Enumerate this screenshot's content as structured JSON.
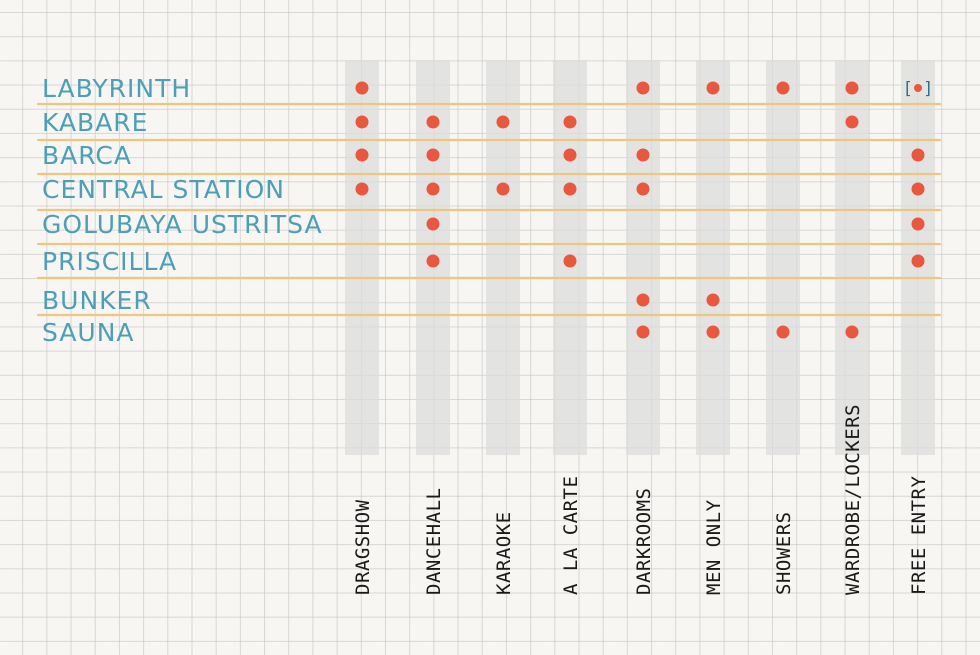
{
  "chart_data": {
    "type": "table",
    "rows": [
      "Labyrinth",
      "Kabare",
      "Barca",
      "Central Station",
      "Golubaya Ustritsa",
      "Priscilla",
      "Bunker",
      "Sauna"
    ],
    "columns": [
      "Dragshow",
      "Dancehall",
      "Karaoke",
      "A la carte",
      "Darkrooms",
      "Men only",
      "Showers",
      "Wardrobe/Lockers",
      "Free entry"
    ],
    "matrix": [
      [
        1,
        0,
        0,
        0,
        1,
        1,
        1,
        1,
        2
      ],
      [
        1,
        1,
        1,
        1,
        0,
        0,
        0,
        1,
        0
      ],
      [
        1,
        1,
        0,
        1,
        1,
        0,
        0,
        0,
        1
      ],
      [
        1,
        1,
        1,
        1,
        1,
        0,
        0,
        0,
        1
      ],
      [
        0,
        1,
        0,
        0,
        0,
        0,
        0,
        0,
        1
      ],
      [
        0,
        1,
        0,
        1,
        0,
        0,
        0,
        0,
        1
      ],
      [
        0,
        0,
        0,
        0,
        1,
        1,
        0,
        0,
        0
      ],
      [
        0,
        0,
        0,
        0,
        1,
        1,
        1,
        1,
        0
      ]
    ],
    "bracket_glyph": "[•]",
    "colors": {
      "dot": "#e9573f",
      "row_label": "#4d9fb7",
      "row_line": "#f0c57d",
      "column_band": "#dcdcdc",
      "column_label": "#1a1a1a"
    }
  }
}
